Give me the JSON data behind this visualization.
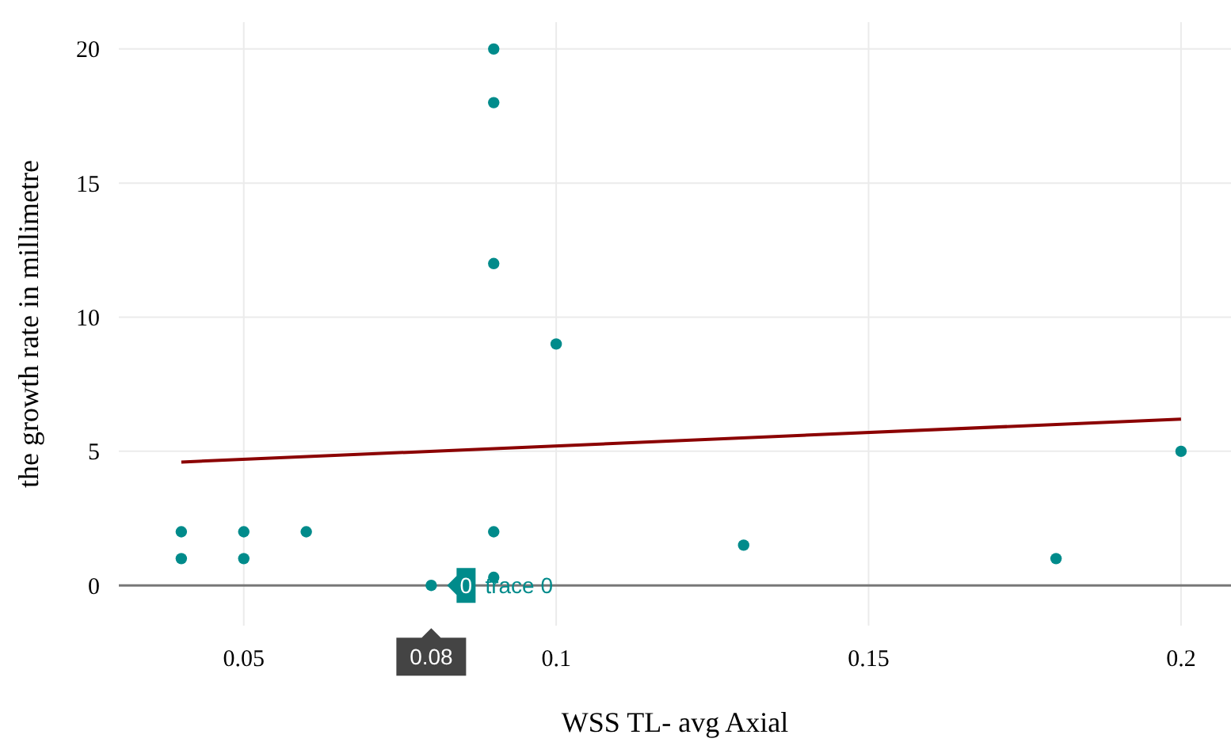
{
  "chart_data": {
    "type": "scatter",
    "xlabel": "WSS TL- avg Axial",
    "ylabel": "the growth rate in millimetre",
    "xlim": [
      0.03,
      0.208
    ],
    "xticks": [
      0.05,
      0.1,
      0.15,
      0.2
    ],
    "ylim": [
      -1.5,
      21
    ],
    "yticks": [
      0,
      5,
      10,
      15,
      20
    ],
    "grid": true,
    "series": [
      {
        "name": "trace 0",
        "marker": "circle",
        "color": "#008b8b",
        "x": [
          0.04,
          0.04,
          0.05,
          0.05,
          0.06,
          0.08,
          0.09,
          0.09,
          0.09,
          0.09,
          0.09,
          0.1,
          0.13,
          0.18,
          0.2
        ],
        "values": [
          2,
          1,
          2,
          1,
          2,
          0,
          20,
          18,
          12,
          2,
          0.3,
          9,
          1.5,
          1,
          5
        ]
      },
      {
        "type": "line",
        "color": "#8b0000",
        "x": [
          0.04,
          0.2
        ],
        "values": [
          4.6,
          6.2
        ],
        "line_style": "solid",
        "marker": "none"
      }
    ],
    "annotations": [
      {
        "text": "0",
        "x": 0.08,
        "y": 0
      },
      {
        "text": "0.08",
        "x": 0.08,
        "y": 0
      }
    ]
  }
}
